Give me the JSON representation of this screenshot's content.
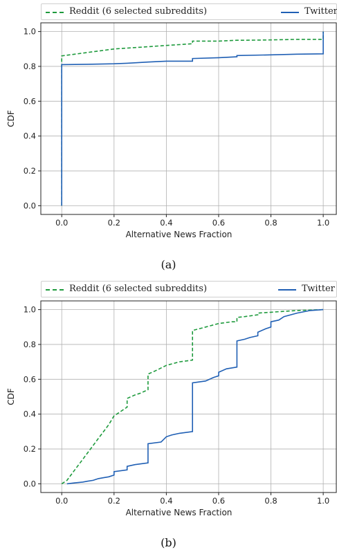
{
  "chart_data": [
    {
      "type": "line",
      "panel_label": "(a)",
      "xlabel": "Alternative News Fraction",
      "ylabel": "CDF",
      "xlim": [
        -0.08,
        1.05
      ],
      "ylim": [
        -0.05,
        1.05
      ],
      "xticks": [
        "0.0",
        "0.2",
        "0.4",
        "0.6",
        "0.8",
        "1.0"
      ],
      "yticks": [
        "0.0",
        "0.2",
        "0.4",
        "0.6",
        "0.8",
        "1.0"
      ],
      "grid": true,
      "legend_position": "top",
      "series": [
        {
          "name": "Reddit (6 selected subreddits)",
          "style": "dashed",
          "color": "#1d9a3c",
          "x": [
            0.0,
            0.0,
            0.0,
            0.05,
            0.1,
            0.15,
            0.2,
            0.25,
            0.3,
            0.35,
            0.4,
            0.45,
            0.5,
            0.5,
            0.6,
            0.67,
            0.7,
            0.8,
            0.9,
            1.0,
            1.0
          ],
          "y": [
            0.0,
            0.84,
            0.86,
            0.87,
            0.88,
            0.89,
            0.9,
            0.905,
            0.91,
            0.915,
            0.92,
            0.925,
            0.93,
            0.945,
            0.945,
            0.95,
            0.95,
            0.952,
            0.955,
            0.955,
            1.0
          ]
        },
        {
          "name": "Twitter",
          "style": "solid",
          "color": "#1f5fb4",
          "x": [
            0.0,
            0.0,
            0.1,
            0.2,
            0.25,
            0.33,
            0.4,
            0.5,
            0.5,
            0.6,
            0.67,
            0.67,
            0.8,
            0.9,
            1.0,
            1.0
          ],
          "y": [
            0.0,
            0.81,
            0.812,
            0.815,
            0.818,
            0.825,
            0.83,
            0.83,
            0.845,
            0.85,
            0.855,
            0.862,
            0.866,
            0.87,
            0.872,
            1.0
          ]
        }
      ]
    },
    {
      "type": "line",
      "panel_label": "(b)",
      "xlabel": "Alternative News Fraction",
      "ylabel": "CDF",
      "xlim": [
        -0.08,
        1.05
      ],
      "ylim": [
        -0.05,
        1.05
      ],
      "xticks": [
        "0.0",
        "0.2",
        "0.4",
        "0.6",
        "0.8",
        "1.0"
      ],
      "yticks": [
        "0.0",
        "0.2",
        "0.4",
        "0.6",
        "0.8",
        "1.0"
      ],
      "grid": true,
      "legend_position": "top",
      "series": [
        {
          "name": "Reddit (6 selected subreddits)",
          "style": "dashed",
          "color": "#1d9a3c",
          "x": [
            0.0,
            0.02,
            0.04,
            0.06,
            0.08,
            0.1,
            0.12,
            0.14,
            0.16,
            0.18,
            0.2,
            0.22,
            0.24,
            0.25,
            0.25,
            0.28,
            0.3,
            0.33,
            0.33,
            0.36,
            0.4,
            0.45,
            0.5,
            0.5,
            0.55,
            0.6,
            0.65,
            0.67,
            0.67,
            0.7,
            0.75,
            0.75,
            0.8,
            0.85,
            0.9,
            1.0
          ],
          "y": [
            0.0,
            0.02,
            0.06,
            0.1,
            0.14,
            0.18,
            0.22,
            0.26,
            0.3,
            0.34,
            0.39,
            0.41,
            0.43,
            0.44,
            0.49,
            0.51,
            0.52,
            0.54,
            0.63,
            0.65,
            0.68,
            0.7,
            0.71,
            0.88,
            0.9,
            0.92,
            0.93,
            0.93,
            0.955,
            0.96,
            0.97,
            0.98,
            0.985,
            0.99,
            0.995,
            1.0
          ]
        },
        {
          "name": "Twitter",
          "style": "solid",
          "color": "#1f5fb4",
          "x": [
            0.02,
            0.05,
            0.08,
            0.1,
            0.12,
            0.14,
            0.16,
            0.18,
            0.2,
            0.2,
            0.25,
            0.25,
            0.28,
            0.33,
            0.33,
            0.38,
            0.4,
            0.42,
            0.45,
            0.5,
            0.5,
            0.55,
            0.58,
            0.6,
            0.6,
            0.63,
            0.67,
            0.67,
            0.7,
            0.72,
            0.75,
            0.75,
            0.78,
            0.8,
            0.8,
            0.83,
            0.85,
            0.9,
            0.95,
            1.0
          ],
          "y": [
            0.0,
            0.005,
            0.01,
            0.015,
            0.02,
            0.03,
            0.035,
            0.04,
            0.05,
            0.07,
            0.08,
            0.1,
            0.11,
            0.12,
            0.23,
            0.24,
            0.27,
            0.28,
            0.29,
            0.3,
            0.58,
            0.59,
            0.61,
            0.62,
            0.64,
            0.66,
            0.67,
            0.82,
            0.83,
            0.84,
            0.85,
            0.87,
            0.89,
            0.9,
            0.93,
            0.94,
            0.96,
            0.98,
            0.995,
            1.0
          ]
        }
      ]
    }
  ]
}
